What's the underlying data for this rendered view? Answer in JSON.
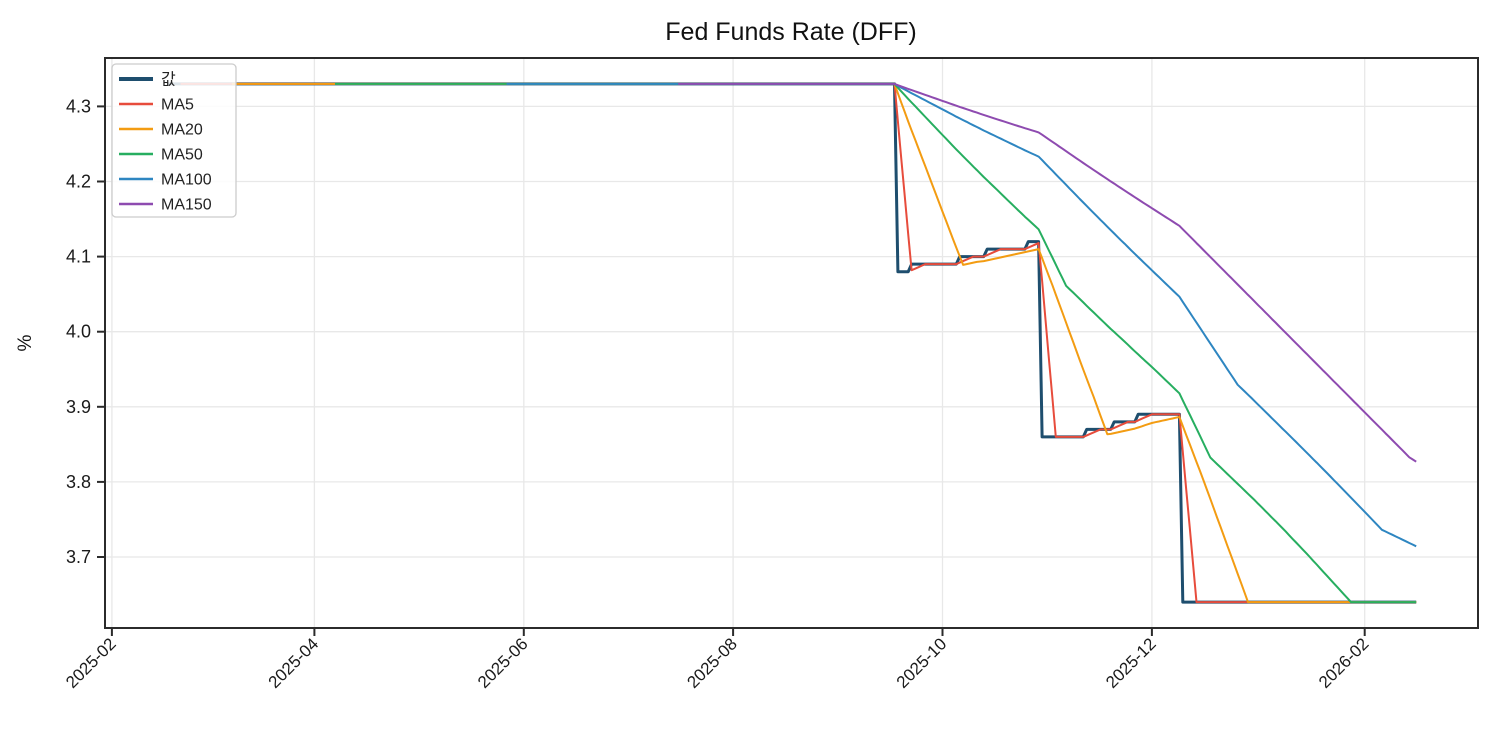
{
  "title": "Fed Funds Rate (DFF)",
  "chart_data": {
    "type": "line",
    "title": "Fed Funds Rate (DFF)",
    "xlabel": "",
    "ylabel": "%",
    "grid": true,
    "legend_position": "upper-left",
    "x_axis_range": [
      "2025-01-30",
      "2026-03-06"
    ],
    "y_axis_range": [
      3.6055,
      4.3645
    ],
    "x_ticks": [
      {
        "date": "2025-02-01",
        "label": "2025-02"
      },
      {
        "date": "2025-04-01",
        "label": "2025-04"
      },
      {
        "date": "2025-06-01",
        "label": "2025-06"
      },
      {
        "date": "2025-08-01",
        "label": "2025-08"
      },
      {
        "date": "2025-10-01",
        "label": "2025-10"
      },
      {
        "date": "2025-12-01",
        "label": "2025-12"
      },
      {
        "date": "2026-02-01",
        "label": "2026-02"
      }
    ],
    "y_ticks": [
      4.3,
      4.2,
      4.1,
      4.0,
      3.9,
      3.8,
      3.7
    ],
    "frequency": "daily",
    "data_start": "2025-02-17",
    "data_end": "2026-02-16",
    "value_segments": [
      {
        "from": "2025-02-17",
        "to": "2025-09-17",
        "value": 4.33
      },
      {
        "from": "2025-09-18",
        "to": "2025-09-21",
        "value": 4.08
      },
      {
        "from": "2025-09-22",
        "to": "2025-10-05",
        "value": 4.09
      },
      {
        "from": "2025-10-06",
        "to": "2025-10-13",
        "value": 4.1
      },
      {
        "from": "2025-10-14",
        "to": "2025-10-25",
        "value": 4.11
      },
      {
        "from": "2025-10-26",
        "to": "2025-10-29",
        "value": 4.12
      },
      {
        "from": "2025-10-30",
        "to": "2025-11-11",
        "value": 3.86
      },
      {
        "from": "2025-11-12",
        "to": "2025-11-19",
        "value": 3.87
      },
      {
        "from": "2025-11-20",
        "to": "2025-11-26",
        "value": 3.88
      },
      {
        "from": "2025-11-27",
        "to": "2025-12-09",
        "value": 3.89
      },
      {
        "from": "2025-12-10",
        "to": "2026-02-16",
        "value": 3.64
      }
    ],
    "series": [
      {
        "name": "값",
        "color": "#1e4e6e",
        "line_width": 3,
        "kind": "value"
      },
      {
        "name": "MA5",
        "color": "#e74c3c",
        "line_width": 2,
        "kind": "moving_average",
        "window": 5
      },
      {
        "name": "MA20",
        "color": "#f39c12",
        "line_width": 2,
        "kind": "moving_average",
        "window": 20
      },
      {
        "name": "MA50",
        "color": "#27ae60",
        "line_width": 2,
        "kind": "moving_average",
        "window": 50
      },
      {
        "name": "MA100",
        "color": "#2e86c1",
        "line_width": 2,
        "kind": "moving_average",
        "window": 100
      },
      {
        "name": "MA150",
        "color": "#8e4bb0",
        "line_width": 2,
        "kind": "moving_average",
        "window": 150
      }
    ],
    "series_end_values": {
      "값": 3.64,
      "MA5": 3.64,
      "MA20": 3.64,
      "MA50": 3.64,
      "MA100": 3.72,
      "MA150": 3.83
    }
  },
  "style": {
    "background": "#ffffff",
    "grid_color": "#e8e8e8",
    "spine_color": "#2b2b2b",
    "tick_color": "#2b2b2b",
    "legend_background": "rgba(255,255,255,0.85)",
    "legend_border_color": "#cccccc"
  }
}
